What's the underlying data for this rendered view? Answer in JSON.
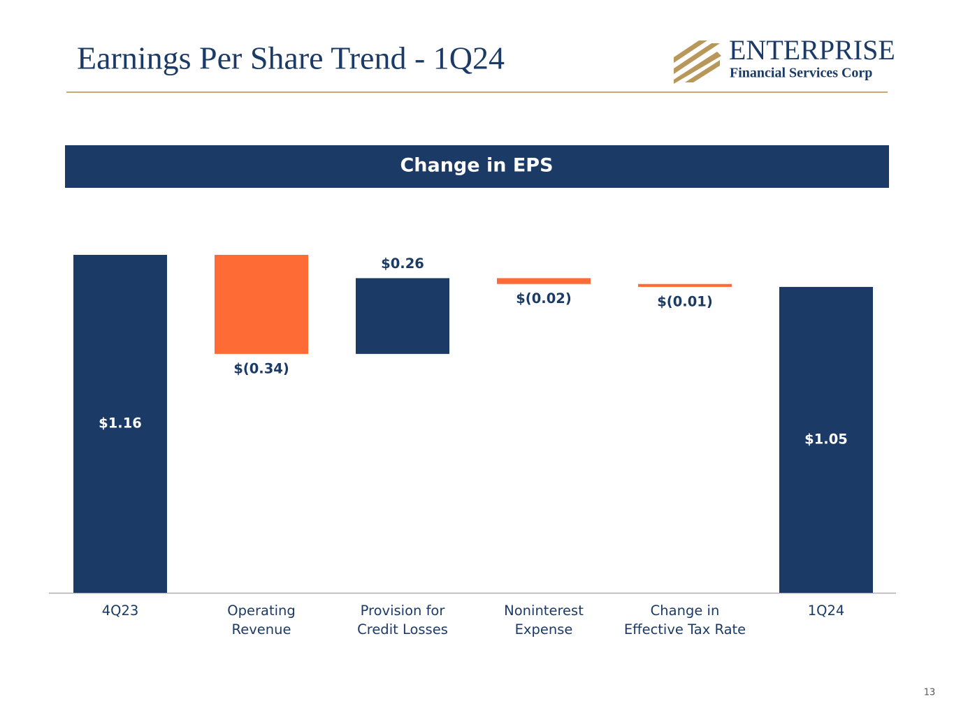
{
  "slide": {
    "title": "Earnings Per Share Trend - 1Q24",
    "logo_name": "ENTERPRISE",
    "logo_subtitle": "Financial Services Corp",
    "page_number": 13
  },
  "chart_data": {
    "type": "waterfall",
    "title": "Change in EPS",
    "categories": [
      "4Q23",
      "Operating Revenue",
      "Provision for Credit Losses",
      "Noninterest Expense",
      "Change in Effective Tax Rate",
      "1Q24"
    ],
    "values": [
      1.16,
      -0.34,
      0.26,
      -0.02,
      -0.01,
      1.05
    ],
    "value_labels": [
      "$1.16",
      "$(0.34)",
      "$0.26",
      "$(0.02)",
      "$(0.01)",
      "$1.05"
    ],
    "color": "#1b3a66",
    "negative_color": "#ff6b35"
  }
}
